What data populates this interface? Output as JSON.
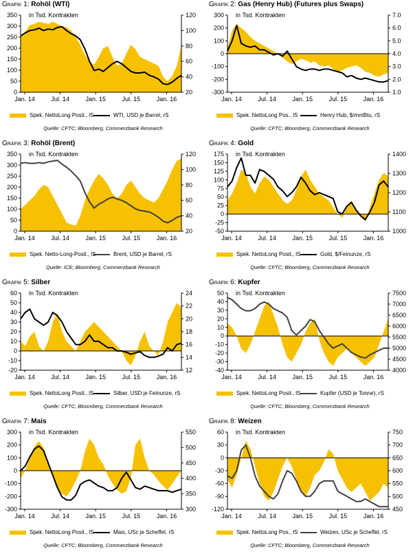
{
  "colors": {
    "area": "#F5C100",
    "line_black": "#000000",
    "line_grey": "#404040"
  },
  "chart_data": [
    {
      "type": "area",
      "number_label": "Grafik 1:",
      "title": "Rohöl (WTI)",
      "unit_label": "in Tsd. Kontrakten",
      "x_ticks": [
        "Jan. 14",
        "Jul. 14",
        "Jan. 15",
        "Jul. 15",
        "Jan. 16"
      ],
      "y_left": {
        "min": 0,
        "max": 350,
        "ticks": [
          "0",
          "50",
          "100",
          "150",
          "200",
          "250",
          "300",
          "350"
        ]
      },
      "y_right": {
        "min": 20,
        "max": 120,
        "ticks": [
          "20",
          "40",
          "60",
          "80",
          "100",
          "120"
        ]
      },
      "series": [
        {
          "name": "Spek. NettoLong Posit., lS",
          "axis": "left",
          "kind": "area",
          "values": [
            255,
            275,
            305,
            310,
            320,
            315,
            310,
            320,
            310,
            300,
            295,
            280,
            250,
            215,
            170,
            140,
            125,
            160,
            200,
            210,
            160,
            120,
            130,
            175,
            215,
            195,
            160,
            150,
            140,
            130,
            120,
            70,
            50,
            75,
            120,
            215
          ]
        },
        {
          "name": "WTI, USD je Barrel, rS",
          "axis": "right",
          "kind": "line",
          "color": "line_black",
          "values": [
            93,
            97,
            100,
            101,
            103,
            100,
            102,
            101,
            104,
            105,
            100,
            96,
            93,
            88,
            76,
            60,
            48,
            50,
            47,
            52,
            57,
            60,
            57,
            52,
            47,
            45,
            45,
            46,
            42,
            40,
            37,
            31,
            30,
            33,
            38,
            42
          ]
        }
      ],
      "source": "Quelle: CFTC; Bloomberg, Commerzbank Research"
    },
    {
      "type": "area",
      "number_label": "Grafik 2:",
      "title": "Gas (Henry Hub) (Futures plus Swaps)",
      "unit_label": "in Tsd. Kontrakten",
      "x_ticks": [
        "Jan. 14",
        "Jul. 14",
        "Jan. 15",
        "Jul. 15",
        "Jan. 16"
      ],
      "y_left": {
        "min": -300,
        "max": 300,
        "ticks": [
          "-300",
          "-200",
          "-100",
          "0",
          "100",
          "200",
          "300"
        ]
      },
      "y_right": {
        "min": 1.0,
        "max": 7.0,
        "ticks": [
          "1.0",
          "2.0",
          "3.0",
          "4.0",
          "5.0",
          "6.0",
          "7.0"
        ]
      },
      "series": [
        {
          "name": "Spek. NettoLong Pos., lS",
          "axis": "left",
          "kind": "area",
          "values": [
            40,
            180,
            230,
            200,
            170,
            130,
            100,
            80,
            60,
            40,
            20,
            0,
            -30,
            -60,
            -80,
            -60,
            -40,
            -50,
            -70,
            -60,
            -90,
            -100,
            -90,
            -120,
            -140,
            -130,
            -110,
            -100,
            -90,
            -110,
            -140,
            -150,
            -170,
            -180,
            -160,
            -150
          ]
        },
        {
          "name": "Henry Hub, $/mmBtu, rS",
          "axis": "right",
          "kind": "line",
          "color": "line_black",
          "values": [
            4.2,
            5.0,
            6.2,
            4.8,
            4.6,
            4.5,
            4.6,
            4.3,
            4.3,
            4.1,
            3.9,
            4.0,
            3.8,
            4.2,
            3.6,
            3.0,
            2.8,
            2.7,
            2.8,
            2.8,
            2.7,
            2.8,
            2.8,
            2.7,
            2.6,
            2.5,
            2.2,
            2.3,
            2.1,
            2.0,
            2.1,
            2.0,
            1.9,
            1.8,
            1.8,
            1.9
          ]
        }
      ],
      "source": "Quelle: CFTC; Bloomberg, Commerzbank Research"
    },
    {
      "type": "area",
      "number_label": "Grafik 3:",
      "title": "Rohöl (Brent)",
      "unit_label": "in Tsd. Kontrakten",
      "x_ticks": [
        "Jan. 14",
        "Jul. 14",
        "Jan. 15",
        "Jul. 15",
        "Jan. 16"
      ],
      "y_left": {
        "min": 0,
        "max": 350,
        "ticks": [
          "0",
          "50",
          "100",
          "150",
          "200",
          "250",
          "300",
          "350"
        ]
      },
      "y_right": {
        "min": 20,
        "max": 120,
        "ticks": [
          "20",
          "40",
          "60",
          "80",
          "100",
          "120"
        ]
      },
      "series": [
        {
          "name": "Spek. Netto-Long-Posit., lS",
          "axis": "left",
          "kind": "area",
          "values": [
            100,
            120,
            140,
            160,
            190,
            210,
            200,
            160,
            120,
            80,
            40,
            30,
            25,
            70,
            140,
            190,
            230,
            260,
            240,
            210,
            170,
            150,
            170,
            210,
            230,
            200,
            170,
            150,
            140,
            130,
            150,
            190,
            230,
            280,
            320,
            330
          ]
        },
        {
          "name": "Brent, USD je Barrel, rS",
          "axis": "right",
          "kind": "line",
          "color": "line_grey",
          "values": [
            108,
            109,
            108,
            108,
            109,
            108,
            110,
            111,
            112,
            107,
            103,
            98,
            92,
            85,
            70,
            58,
            50,
            55,
            58,
            62,
            64,
            62,
            60,
            57,
            53,
            49,
            47,
            46,
            45,
            42,
            38,
            33,
            31,
            34,
            38,
            40
          ]
        }
      ],
      "source": "Quelle: ICE; Bloomberg, Commerzbank Research"
    },
    {
      "type": "area",
      "number_label": "Grafik 4:",
      "title": "Gold",
      "unit_label": "in Tsd. Kontrakten",
      "x_ticks": [
        "Jan. 14",
        "Jul. 14",
        "Jan. 15",
        "Jul. 15",
        "Jan. 16"
      ],
      "y_left": {
        "min": -50,
        "max": 175,
        "ticks": [
          "-50",
          "-25",
          "0",
          "25",
          "50",
          "75",
          "100",
          "125",
          "150",
          "175"
        ]
      },
      "y_right": {
        "min": 1000,
        "max": 1400,
        "ticks": [
          "1000",
          "1100",
          "1200",
          "1300",
          "1400"
        ]
      },
      "series": [
        {
          "name": "Spek. NettoLong Posit., lS",
          "axis": "left",
          "kind": "area",
          "values": [
            40,
            60,
            90,
            130,
            120,
            80,
            60,
            90,
            110,
            100,
            80,
            60,
            40,
            30,
            40,
            70,
            110,
            130,
            100,
            80,
            60,
            50,
            40,
            20,
            0,
            -10,
            20,
            40,
            10,
            -10,
            -20,
            20,
            60,
            100,
            120,
            110
          ]
        },
        {
          "name": "Gold, $/Feinunze, rS",
          "axis": "right",
          "kind": "line",
          "color": "line_black",
          "values": [
            1230,
            1260,
            1330,
            1380,
            1290,
            1290,
            1250,
            1320,
            1310,
            1290,
            1270,
            1230,
            1210,
            1180,
            1200,
            1230,
            1280,
            1250,
            1210,
            1190,
            1200,
            1190,
            1180,
            1170,
            1100,
            1090,
            1130,
            1150,
            1110,
            1080,
            1060,
            1100,
            1150,
            1240,
            1260,
            1230
          ]
        }
      ],
      "source": "Quelle: CFTC; Bloomberg, Commerzbank Research"
    },
    {
      "type": "area",
      "number_label": "Grafik 5:",
      "title": "Silber",
      "unit_label": "in Tsd. Kontrakten",
      "x_ticks": [
        "Jan. 14",
        "Jul. 14",
        "Jan. 15",
        "Jul. 15",
        "Jan. 16"
      ],
      "y_left": {
        "min": -20,
        "max": 60,
        "ticks": [
          "-20",
          "-10",
          "0",
          "10",
          "20",
          "30",
          "40",
          "50",
          "60"
        ]
      },
      "y_right": {
        "min": 12,
        "max": 24,
        "ticks": [
          "12",
          "14",
          "16",
          "18",
          "20",
          "22",
          "24"
        ]
      },
      "series": [
        {
          "name": "Spek. NettoLong Posit., lS",
          "axis": "left",
          "kind": "area",
          "values": [
            10,
            5,
            15,
            20,
            5,
            0,
            10,
            30,
            40,
            20,
            10,
            5,
            0,
            10,
            20,
            25,
            30,
            25,
            20,
            15,
            10,
            5,
            0,
            -10,
            -15,
            -5,
            10,
            20,
            5,
            0,
            -5,
            10,
            30,
            40,
            50,
            45
          ]
        },
        {
          "name": "Silber, USD je Feinunze, rS",
          "axis": "right",
          "kind": "line",
          "color": "line_black",
          "values": [
            20.0,
            21.0,
            21.5,
            20.0,
            19.5,
            19.0,
            19.5,
            21.0,
            20.5,
            19.5,
            18.0,
            17.0,
            16.0,
            16.0,
            16.5,
            17.5,
            16.5,
            16.5,
            16.0,
            15.5,
            15.5,
            15.0,
            15.0,
            14.8,
            14.5,
            14.7,
            14.9,
            14.3,
            14.0,
            14.0,
            14.2,
            14.5,
            15.5,
            15.0,
            16.0,
            16.2
          ]
        }
      ],
      "source": "Quelle: CFTC; Bloomberg, Commerzbank Research"
    },
    {
      "type": "area",
      "number_label": "Grafik 6:",
      "title": "Kupfer",
      "unit_label": "in Tsd. Kontrakten",
      "x_ticks": [
        "Jan. 14",
        "Jul. 14",
        "Jan. 15",
        "Jul. 15",
        "Jan. 16"
      ],
      "y_left": {
        "min": -40,
        "max": 50,
        "ticks": [
          "-40",
          "-30",
          "-20",
          "-10",
          "0",
          "10",
          "20",
          "30",
          "40",
          "50"
        ]
      },
      "y_right": {
        "min": 4000,
        "max": 7500,
        "ticks": [
          "4000",
          "4500",
          "5000",
          "5500",
          "6000",
          "6500",
          "7000",
          "7500"
        ]
      },
      "series": [
        {
          "name": "Spek. NettoLong Posit., lS",
          "axis": "left",
          "kind": "area",
          "values": [
            15,
            10,
            0,
            -15,
            -20,
            -10,
            5,
            20,
            35,
            40,
            25,
            10,
            -10,
            -25,
            -30,
            -20,
            -10,
            5,
            15,
            20,
            -5,
            -20,
            -30,
            -35,
            -25,
            -20,
            -15,
            -20,
            -25,
            -30,
            -35,
            -30,
            -25,
            -10,
            5,
            20
          ]
        },
        {
          "name": "Kupfer (USD je Tonne), rS",
          "axis": "right",
          "kind": "line",
          "color": "line_grey",
          "values": [
            7300,
            7200,
            7000,
            6800,
            6700,
            6700,
            6800,
            7000,
            7100,
            7000,
            6800,
            6700,
            6600,
            6400,
            5800,
            5600,
            5800,
            6000,
            6300,
            6200,
            5800,
            5500,
            5200,
            5000,
            5100,
            5200,
            5000,
            4800,
            4700,
            4600,
            4550,
            4700,
            4800,
            4900,
            5000,
            5000
          ]
        }
      ],
      "source": "Quelle: CFTC; Bloomberg, Commerzbank Research"
    },
    {
      "type": "area",
      "number_label": "Grafik 7:",
      "title": "Mais",
      "unit_label": "in Tsd. Kontrakten",
      "x_ticks": [
        "Jan. 14",
        "Jul. 14",
        "Jan. 15",
        "Jul. 15",
        "Jan. 16"
      ],
      "y_left": {
        "min": -300,
        "max": 300,
        "ticks": [
          "-300",
          "-200",
          "-100",
          "0",
          "100",
          "200",
          "300"
        ]
      },
      "y_right": {
        "min": 300,
        "max": 550,
        "ticks": [
          "300",
          "350",
          "400",
          "450",
          "500",
          "550"
        ]
      },
      "series": [
        {
          "name": "Spek. NettoLong Posit., lS",
          "axis": "left",
          "kind": "area",
          "values": [
            -60,
            0,
            100,
            190,
            230,
            180,
            60,
            -50,
            -140,
            -180,
            -200,
            -150,
            -80,
            0,
            150,
            250,
            200,
            100,
            50,
            -40,
            -100,
            -150,
            -180,
            -160,
            -50,
            200,
            250,
            100,
            0,
            -30,
            -80,
            -120,
            -150,
            -100,
            -50,
            0
          ]
        },
        {
          "name": "Mais, USc je Scheffel, rS",
          "axis": "right",
          "kind": "line",
          "color": "line_black",
          "values": [
            425,
            440,
            470,
            495,
            505,
            490,
            450,
            410,
            370,
            340,
            330,
            330,
            345,
            380,
            390,
            395,
            385,
            375,
            370,
            360,
            360,
            370,
            400,
            420,
            395,
            370,
            365,
            375,
            370,
            365,
            360,
            360,
            360,
            355,
            360,
            365
          ]
        }
      ],
      "source": "Quelle: CFTC; Bloomberg, Commerzbank Research"
    },
    {
      "type": "area",
      "number_label": "Grafik 8:",
      "title": "Weizen",
      "unit_label": "in Tsd. Kontrakten",
      "x_ticks": [
        "Jan. 14",
        "Jul. 14",
        "Jan. 15",
        "Jul. 15",
        "Jan. 16"
      ],
      "y_left": {
        "min": -120,
        "max": 60,
        "ticks": [
          "-120",
          "-90",
          "-60",
          "-30",
          "0",
          "30",
          "60"
        ]
      },
      "y_right": {
        "min": 450,
        "max": 750,
        "ticks": [
          "450",
          "500",
          "550",
          "600",
          "650",
          "700",
          "750"
        ]
      },
      "series": [
        {
          "name": "Spek. NettoLong Pos., lS",
          "axis": "left",
          "kind": "area",
          "values": [
            -50,
            -70,
            -40,
            0,
            40,
            20,
            -20,
            -60,
            -90,
            -100,
            -80,
            -50,
            -20,
            0,
            -20,
            -50,
            -80,
            -90,
            -70,
            -40,
            -30,
            -10,
            20,
            10,
            -30,
            -50,
            -70,
            -80,
            -70,
            -60,
            -80,
            -100,
            -90,
            -80,
            -60,
            -70
          ]
        },
        {
          "name": "Weizen, USc je Scheffel, rS",
          "axis": "right",
          "kind": "line",
          "color": "line_grey",
          "values": [
            580,
            570,
            600,
            680,
            700,
            650,
            580,
            540,
            520,
            500,
            490,
            510,
            560,
            600,
            590,
            560,
            520,
            500,
            500,
            520,
            550,
            560,
            560,
            560,
            520,
            510,
            500,
            490,
            480,
            480,
            490,
            480,
            470,
            460,
            460,
            460
          ]
        }
      ],
      "source": "Quelle: CFTC; Bloomberg, Commerzbank Research"
    }
  ]
}
